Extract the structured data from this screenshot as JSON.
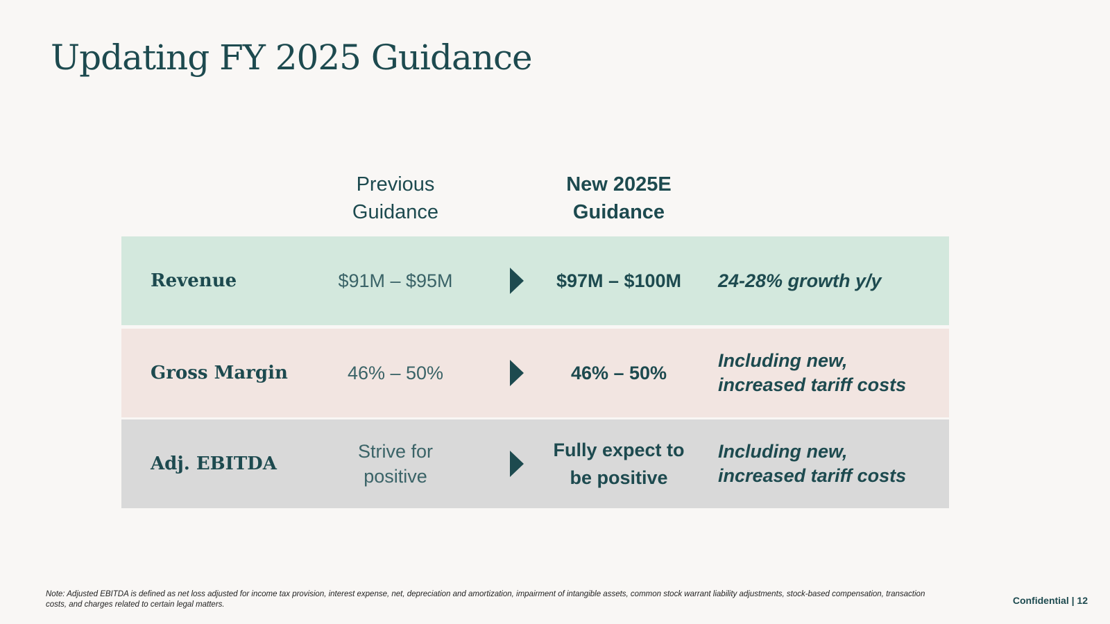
{
  "slide": {
    "title": "Updating FY 2025 Guidance",
    "row_colors": [
      "#d3e8dd",
      "#f2e5e1",
      "#d9d9d9"
    ]
  },
  "table": {
    "headers": {
      "previous": "Previous\nGuidance",
      "new": "New 2025E\nGuidance"
    },
    "rows": [
      {
        "metric": "Revenue",
        "previous": "$91M – $95M",
        "new": "$97M – $100M",
        "note": "24-28% growth y/y"
      },
      {
        "metric": "Gross Margin",
        "previous": "46% – 50%",
        "new": "46% – 50%",
        "note": "Including new, increased tariff costs"
      },
      {
        "metric": "Adj. EBITDA",
        "previous": "Strive for positive",
        "new": "Fully expect to be positive",
        "note": "Including new, increased tariff costs"
      }
    ]
  },
  "footer": {
    "note": "Note: Adjusted EBITDA is defined as net loss adjusted for income tax provision, interest expense, net, depreciation and amortization, impairment of intangible assets, common stock warrant liability adjustments, stock-based compensation, transaction costs, and charges related to certain legal matters.",
    "confidential": "Confidential | 12"
  },
  "icons": {
    "arrow": "triangle-right-icon"
  }
}
